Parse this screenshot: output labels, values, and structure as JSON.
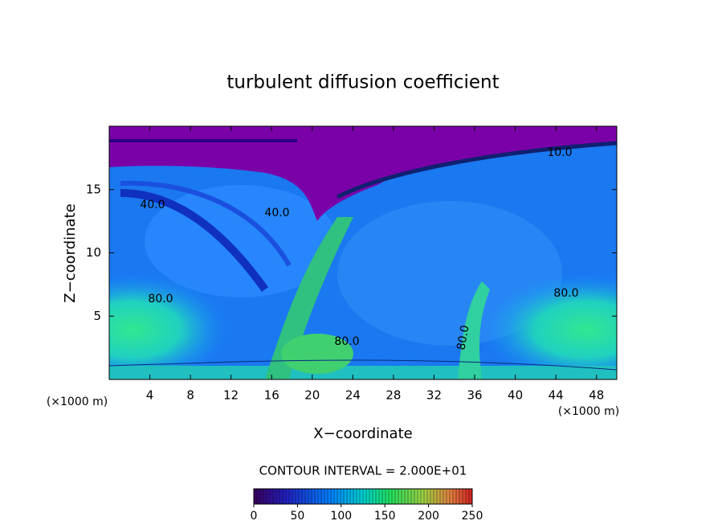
{
  "chart_data": {
    "type": "contour",
    "title": "turbulent diffusion coefficient",
    "x_label": "X−coordinate",
    "y_label": "Z−coordinate",
    "x_unit": "(×1000 m)",
    "y_unit": "(×1000 m)",
    "xlim": [
      0,
      50
    ],
    "xticks": [
      4,
      8,
      12,
      16,
      20,
      24,
      28,
      32,
      36,
      40,
      44,
      48
    ],
    "ylim": [
      0,
      20
    ],
    "yticks": [
      5,
      10,
      15
    ],
    "contour_labels": [
      "40.0",
      "40.0",
      "80.0",
      "80.0",
      "80.0",
      "80.0",
      "10.0"
    ],
    "contour_interval": "CONTOUR INTERVAL = 2.000E+01",
    "colorbar": {
      "lim": [
        0,
        250
      ],
      "ticks": [
        0,
        50,
        100,
        150,
        200,
        250
      ]
    }
  }
}
